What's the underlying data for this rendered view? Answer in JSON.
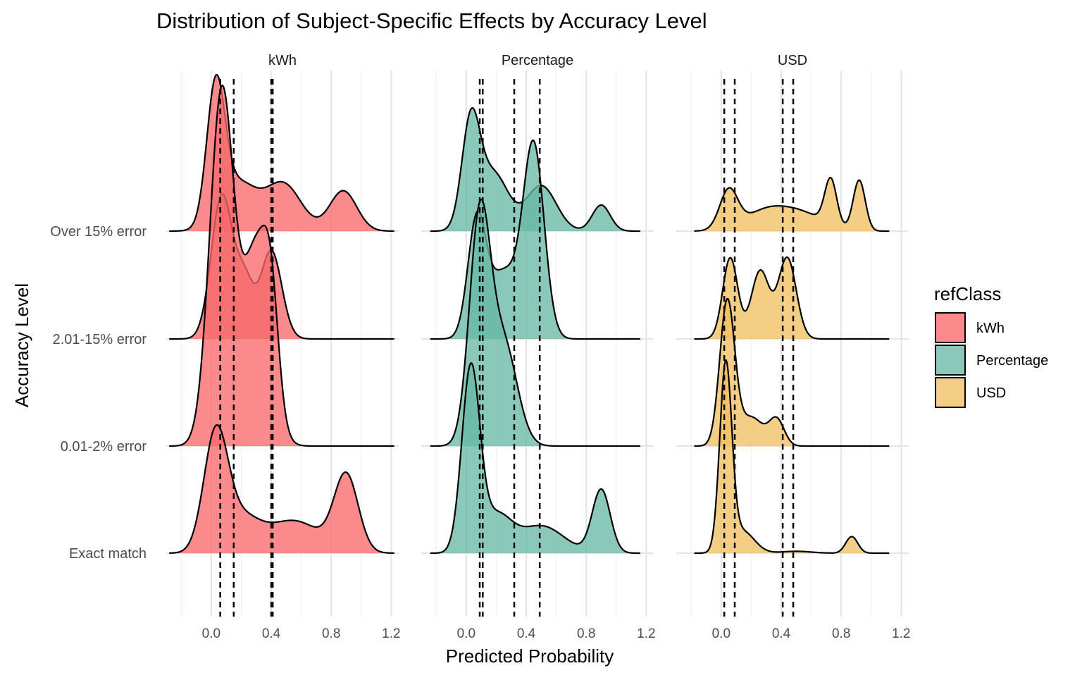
{
  "chart_data": {
    "type": "ridgeline-density",
    "title": "Distribution of Subject-Specific Effects by Accuracy Level",
    "xlabel": "Predicted Probability",
    "ylabel": "Accuracy Level",
    "facets": [
      "kWh",
      "Percentage",
      "USD"
    ],
    "categories": [
      "Exact match",
      "0.01-2% error",
      "2.01-15% error",
      "Over 15% error"
    ],
    "x_ticks": [
      0.0,
      0.4,
      0.8,
      1.2
    ],
    "x_tick_labels": [
      "0.0",
      "0.4",
      "0.8",
      "1.2"
    ],
    "xlim": [
      -0.3,
      1.25
    ],
    "grid": true,
    "legend": {
      "title": "refClass",
      "position": "right",
      "entries": [
        {
          "label": "kWh",
          "color": "#F8696B"
        },
        {
          "label": "Percentage",
          "color": "#69B8A6"
        },
        {
          "label": "USD",
          "color": "#F2C063"
        }
      ]
    },
    "quantile_lines": {
      "kWh": [
        0.06,
        0.15,
        0.4,
        0.41
      ],
      "Percentage": [
        0.09,
        0.11,
        0.32,
        0.49
      ],
      "USD": [
        0.02,
        0.09,
        0.41,
        0.48
      ]
    },
    "series": [
      {
        "facet": "kWh",
        "densities": {
          "Exact match": {
            "range": [
              -0.28,
              1.22
            ],
            "peaks": [
              [
                0.03,
                0.08,
                1.0
              ],
              [
                0.2,
                0.12,
                0.28
              ],
              [
                0.55,
                0.18,
                0.28
              ],
              [
                0.9,
                0.08,
                0.66
              ]
            ]
          },
          "0.01-2% error": {
            "range": [
              -0.28,
              1.22
            ],
            "peaks": [
              [
                0.07,
                0.08,
                1.0
              ],
              [
                0.3,
                0.09,
                0.55
              ],
              [
                0.4,
                0.05,
                0.25
              ]
            ]
          },
          "2.01-15% error": {
            "range": [
              -0.28,
              1.22
            ],
            "peaks": [
              [
                0.07,
                0.07,
                1.0
              ],
              [
                0.22,
                0.06,
                0.4
              ],
              [
                0.4,
                0.07,
                0.62
              ]
            ]
          },
          "Over 15% error": {
            "range": [
              -0.28,
              1.22
            ],
            "peaks": [
              [
                0.03,
                0.06,
                1.0
              ],
              [
                0.18,
                0.12,
                0.35
              ],
              [
                0.48,
                0.12,
                0.35
              ],
              [
                0.88,
                0.09,
                0.3
              ]
            ]
          }
        }
      },
      {
        "facet": "Percentage",
        "densities": {
          "Exact match": {
            "range": [
              -0.24,
              1.16
            ],
            "peaks": [
              [
                0.03,
                0.06,
                1.0
              ],
              [
                0.2,
                0.1,
                0.2
              ],
              [
                0.5,
                0.15,
                0.15
              ],
              [
                0.9,
                0.06,
                0.35
              ]
            ]
          },
          "0.01-2% error": {
            "range": [
              -0.24,
              1.16
            ],
            "peaks": [
              [
                0.09,
                0.07,
                1.0
              ],
              [
                0.25,
                0.09,
                0.45
              ]
            ]
          },
          "2.01-15% error": {
            "range": [
              -0.24,
              1.16
            ],
            "peaks": [
              [
                0.07,
                0.06,
                0.6
              ],
              [
                0.25,
                0.1,
                0.35
              ],
              [
                0.45,
                0.07,
                1.0
              ]
            ]
          },
          "Over 15% error": {
            "range": [
              -0.24,
              1.16
            ],
            "peaks": [
              [
                0.03,
                0.06,
                0.75
              ],
              [
                0.18,
                0.1,
                0.42
              ],
              [
                0.5,
                0.1,
                0.33
              ],
              [
                0.9,
                0.06,
                0.19
              ]
            ]
          }
        }
      },
      {
        "facet": "USD",
        "densities": {
          "Exact match": {
            "range": [
              -0.18,
              1.12
            ],
            "peaks": [
              [
                0.03,
                0.04,
                1.0
              ],
              [
                0.14,
                0.08,
                0.12
              ],
              [
                0.5,
                0.1,
                0.01
              ],
              [
                0.87,
                0.04,
                0.09
              ]
            ]
          },
          "0.01-2% error": {
            "range": [
              -0.18,
              1.12
            ],
            "peaks": [
              [
                0.04,
                0.05,
                1.0
              ],
              [
                0.2,
                0.08,
                0.2
              ],
              [
                0.37,
                0.05,
                0.18
              ]
            ]
          },
          "2.01-15% error": {
            "range": [
              -0.18,
              1.12
            ],
            "peaks": [
              [
                0.06,
                0.05,
                0.5
              ],
              [
                0.26,
                0.06,
                0.42
              ],
              [
                0.44,
                0.06,
                0.5
              ]
            ]
          },
          "Over 15% error": {
            "range": [
              -0.18,
              1.12
            ],
            "peaks": [
              [
                0.05,
                0.06,
                0.25
              ],
              [
                0.3,
                0.15,
                0.13
              ],
              [
                0.55,
                0.15,
                0.1
              ],
              [
                0.73,
                0.04,
                0.3
              ],
              [
                0.92,
                0.04,
                0.33
              ]
            ]
          }
        }
      }
    ]
  }
}
